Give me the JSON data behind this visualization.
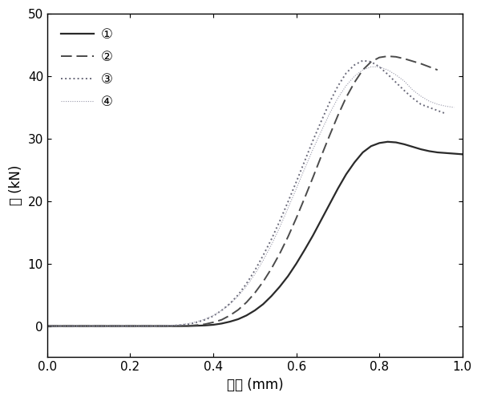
{
  "title": "",
  "xlabel": "位移 (mm)",
  "ylabel": "力 (kN)",
  "xlim": [
    0.0,
    1.0
  ],
  "ylim": [
    -5,
    50
  ],
  "yticks": [
    0,
    10,
    20,
    30,
    40,
    50
  ],
  "xticks": [
    0.0,
    0.2,
    0.4,
    0.6,
    0.8,
    1.0
  ],
  "legend_labels": [
    "①",
    "②",
    "③",
    "④"
  ],
  "line_colors": [
    "#2a2a2a",
    "#4a4a4a",
    "#7a7a7a",
    "#aaaaaa"
  ],
  "background_color": "#ffffff",
  "font_size": 12,
  "series1_x": [
    0.0,
    0.3,
    0.32,
    0.34,
    0.36,
    0.38,
    0.4,
    0.42,
    0.44,
    0.46,
    0.48,
    0.5,
    0.52,
    0.54,
    0.56,
    0.58,
    0.6,
    0.62,
    0.64,
    0.66,
    0.68,
    0.7,
    0.72,
    0.74,
    0.76,
    0.78,
    0.8,
    0.82,
    0.84,
    0.86,
    0.88,
    0.9,
    0.92,
    0.94,
    0.96,
    0.98,
    1.0
  ],
  "series1_y": [
    0.0,
    0.0,
    0.0,
    0.0,
    0.05,
    0.1,
    0.2,
    0.4,
    0.7,
    1.1,
    1.7,
    2.5,
    3.5,
    4.8,
    6.3,
    8.0,
    10.0,
    12.2,
    14.5,
    17.0,
    19.5,
    22.0,
    24.3,
    26.2,
    27.8,
    28.8,
    29.3,
    29.5,
    29.4,
    29.1,
    28.7,
    28.3,
    28.0,
    27.8,
    27.7,
    27.6,
    27.5
  ],
  "series2_x": [
    0.0,
    0.3,
    0.32,
    0.34,
    0.36,
    0.38,
    0.4,
    0.42,
    0.44,
    0.46,
    0.48,
    0.5,
    0.52,
    0.54,
    0.56,
    0.58,
    0.6,
    0.62,
    0.64,
    0.66,
    0.68,
    0.7,
    0.72,
    0.74,
    0.76,
    0.78,
    0.8,
    0.82,
    0.84,
    0.86,
    0.88,
    0.9,
    0.92,
    0.94
  ],
  "series2_y": [
    0.0,
    0.0,
    0.0,
    0.05,
    0.15,
    0.3,
    0.6,
    1.0,
    1.7,
    2.6,
    3.8,
    5.3,
    7.1,
    9.2,
    11.6,
    14.3,
    17.3,
    20.5,
    23.8,
    27.2,
    30.5,
    33.7,
    36.6,
    39.0,
    41.0,
    42.3,
    43.0,
    43.2,
    43.1,
    42.8,
    42.4,
    42.0,
    41.5,
    41.0
  ],
  "series3_x": [
    0.0,
    0.28,
    0.3,
    0.32,
    0.34,
    0.36,
    0.38,
    0.4,
    0.42,
    0.44,
    0.46,
    0.48,
    0.5,
    0.52,
    0.54,
    0.56,
    0.58,
    0.6,
    0.62,
    0.64,
    0.66,
    0.68,
    0.7,
    0.72,
    0.74,
    0.76,
    0.78,
    0.8,
    0.82,
    0.84,
    0.86,
    0.88,
    0.9,
    0.92,
    0.94,
    0.96
  ],
  "series3_y": [
    0.0,
    0.0,
    0.05,
    0.15,
    0.3,
    0.6,
    1.0,
    1.6,
    2.5,
    3.6,
    5.0,
    6.8,
    8.9,
    11.3,
    13.9,
    16.8,
    19.9,
    23.1,
    26.4,
    29.7,
    32.8,
    35.8,
    38.4,
    40.5,
    41.8,
    42.5,
    42.3,
    41.5,
    40.3,
    39.0,
    37.7,
    36.5,
    35.5,
    35.0,
    34.5,
    34.0
  ],
  "series4_x": [
    0.0,
    0.26,
    0.28,
    0.3,
    0.32,
    0.34,
    0.36,
    0.38,
    0.4,
    0.42,
    0.44,
    0.46,
    0.48,
    0.5,
    0.52,
    0.54,
    0.56,
    0.58,
    0.6,
    0.62,
    0.64,
    0.66,
    0.68,
    0.7,
    0.72,
    0.74,
    0.76,
    0.78,
    0.8,
    0.82,
    0.84,
    0.86,
    0.88,
    0.9,
    0.92,
    0.94,
    0.96,
    0.98
  ],
  "series4_y": [
    0.0,
    0.0,
    0.05,
    0.1,
    0.2,
    0.4,
    0.7,
    1.1,
    1.7,
    2.5,
    3.5,
    4.8,
    6.4,
    8.3,
    10.5,
    13.0,
    15.8,
    18.9,
    22.0,
    25.2,
    28.3,
    31.2,
    34.0,
    36.5,
    38.5,
    40.0,
    41.0,
    41.5,
    41.5,
    41.0,
    40.2,
    39.2,
    37.8,
    36.8,
    36.0,
    35.5,
    35.2,
    35.0
  ]
}
